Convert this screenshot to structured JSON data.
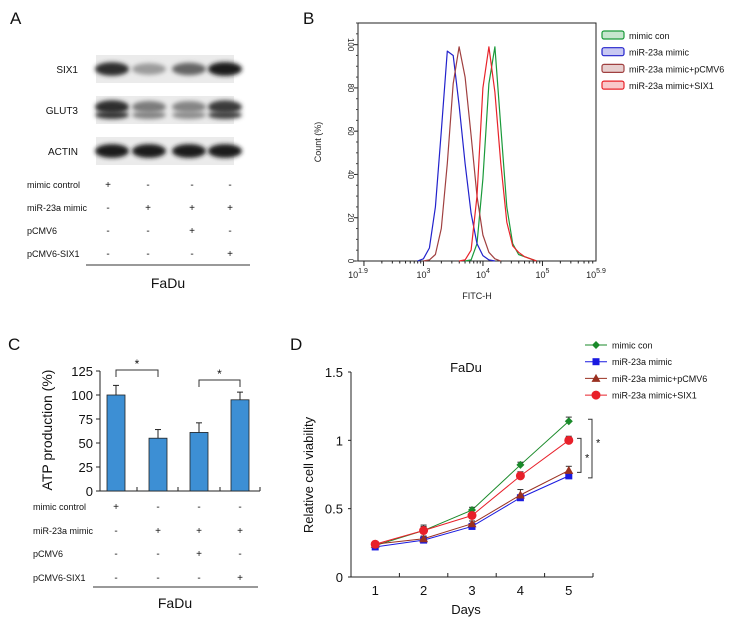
{
  "panels": {
    "a": "A",
    "b": "B",
    "c": "C",
    "d": "D"
  },
  "cell_line": "FaDu",
  "treatments": {
    "rows": [
      "mimic control",
      "miR-23a mimic",
      "pCMV6",
      "pCMV6-SIX1"
    ],
    "signs": [
      [
        "+",
        "-",
        "-",
        "-"
      ],
      [
        "-",
        "+",
        "+",
        "+"
      ],
      [
        "-",
        "-",
        "+",
        "-"
      ],
      [
        "-",
        "-",
        "-",
        "+"
      ]
    ]
  },
  "western_blot": {
    "bands": [
      {
        "label": "SIX1",
        "intensity": [
          0.85,
          0.35,
          0.6,
          0.95
        ]
      },
      {
        "label": "GLUT3",
        "intensity": [
          0.85,
          0.5,
          0.45,
          0.8
        ]
      },
      {
        "label": "ACTIN",
        "intensity": [
          0.95,
          0.95,
          0.95,
          0.95
        ]
      }
    ]
  },
  "chart_data": [
    {
      "panel": "B",
      "type": "line",
      "xlabel": "FITC-H",
      "ylabel": "Count  (%)",
      "xscale": "log",
      "xlim_log10": [
        1.9,
        5.9
      ],
      "xtick_labels": [
        [
          "10",
          "1.9"
        ],
        [
          "10",
          "3"
        ],
        [
          "10",
          "4"
        ],
        [
          "10",
          "5"
        ],
        [
          "10",
          "5.9"
        ]
      ],
      "xtick_log10": [
        1.9,
        3,
        4,
        5,
        5.9
      ],
      "ylim": [
        0,
        110
      ],
      "yticks": [
        0,
        20,
        40,
        60,
        80,
        100
      ],
      "legend": "right",
      "series": [
        {
          "name": "mimic con",
          "color": "#1a9a3a",
          "x_log10": [
            3.7,
            3.8,
            3.9,
            4.0,
            4.1,
            4.2,
            4.3,
            4.4,
            4.5,
            4.6,
            4.7,
            4.8,
            4.9
          ],
          "y": [
            0,
            0.5,
            8,
            38,
            82,
            99,
            62,
            25,
            8,
            3,
            2,
            1,
            0
          ]
        },
        {
          "name": "miR-23a mimic",
          "color": "#2222cc",
          "x_log10": [
            2.9,
            3.0,
            3.1,
            3.2,
            3.3,
            3.4,
            3.5,
            3.6,
            3.7,
            3.8,
            3.9,
            4.0,
            4.1,
            4.2
          ],
          "y": [
            0,
            1,
            6,
            25,
            60,
            97,
            95,
            72,
            45,
            22,
            8,
            2.5,
            0.5,
            0
          ]
        },
        {
          "name": "miR-23a mimic+pCMV6",
          "color": "#a04040",
          "x_log10": [
            3.0,
            3.1,
            3.2,
            3.3,
            3.4,
            3.5,
            3.6,
            3.7,
            3.8,
            3.9,
            4.0,
            4.1,
            4.2,
            4.3
          ],
          "y": [
            0,
            0.5,
            3,
            15,
            45,
            82,
            99,
            85,
            58,
            30,
            12,
            4,
            1,
            0
          ]
        },
        {
          "name": "miR-23a mimic+SIX1",
          "color": "#e8232a",
          "x_log10": [
            3.6,
            3.7,
            3.8,
            3.9,
            4.0,
            4.1,
            4.2,
            4.3,
            4.4,
            4.5,
            4.6,
            4.7,
            4.8,
            4.9
          ],
          "y": [
            0,
            0.5,
            5,
            30,
            80,
            99,
            78,
            45,
            18,
            7,
            4,
            2,
            1,
            0
          ]
        }
      ]
    },
    {
      "panel": "C",
      "type": "bar",
      "ylabel": "ATP production (%)",
      "ylim": [
        0,
        125
      ],
      "yticks": [
        0,
        25,
        50,
        75,
        100,
        125
      ],
      "color": "#3d8fd4",
      "values": [
        100,
        55,
        61,
        95
      ],
      "errors": [
        10,
        9,
        10,
        8
      ],
      "significance": [
        {
          "pair": [
            0,
            1
          ],
          "label": "*"
        },
        {
          "pair": [
            2,
            3
          ],
          "label": "*"
        }
      ]
    },
    {
      "panel": "D",
      "type": "line",
      "title": "FaDu",
      "xlabel": "Days",
      "ylabel": "Relative cell viability",
      "x": [
        1,
        2,
        3,
        4,
        5
      ],
      "xlim": [
        0.5,
        5.5
      ],
      "ylim": [
        0,
        1.5
      ],
      "yticks": [
        0,
        0.5,
        1,
        1.5
      ],
      "ytick_labels": [
        "0",
        "0.5",
        "1",
        "1.5"
      ],
      "legend": "top-right",
      "series": [
        {
          "name": "mimic con",
          "color": "#1a8a2a",
          "marker": "diamond",
          "values": [
            0.23,
            0.34,
            0.49,
            0.82,
            1.14
          ],
          "errors": [
            0.02,
            0.03,
            0.02,
            0.02,
            0.03
          ]
        },
        {
          "name": "miR-23a mimic",
          "color": "#1a1ae0",
          "marker": "square",
          "values": [
            0.22,
            0.27,
            0.37,
            0.58,
            0.74
          ],
          "errors": [
            0.01,
            0.02,
            0.02,
            0.02,
            0.02
          ]
        },
        {
          "name": "miR-23a mimic+pCMV6",
          "color": "#9a3020",
          "marker": "triangle",
          "values": [
            0.24,
            0.28,
            0.39,
            0.6,
            0.78
          ],
          "errors": [
            0.02,
            0.02,
            0.02,
            0.04,
            0.03
          ]
        },
        {
          "name": "miR-23a mimic+SIX1",
          "color": "#e8202a",
          "marker": "circle",
          "values": [
            0.24,
            0.34,
            0.45,
            0.74,
            1.0
          ],
          "errors": [
            0.02,
            0.04,
            0.02,
            0.03,
            0.03
          ]
        }
      ],
      "significance": [
        {
          "between": [
            3,
            2
          ],
          "label": "*"
        },
        {
          "between": [
            0,
            1
          ],
          "label": "*"
        }
      ]
    }
  ]
}
